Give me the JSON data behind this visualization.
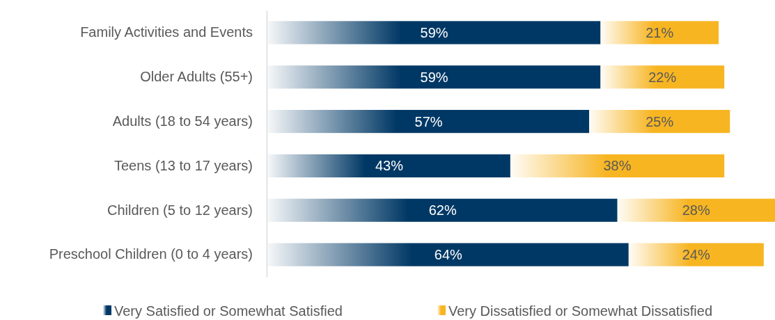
{
  "chart_data": {
    "type": "bar",
    "orientation": "horizontal",
    "stacked": true,
    "legend": "bottom",
    "categories": [
      "Family Activities and Events",
      "Older Adults (55+)",
      "Adults (18 to 54 years)",
      "Teens (13 to 17 years)",
      "Children (5 to 12 years)",
      "Preschool Children (0 to 4 years)"
    ],
    "series": [
      {
        "name": "Very Satisfied or Somewhat Satisfied",
        "color": "#003865",
        "values": [
          59,
          59,
          57,
          43,
          62,
          64
        ],
        "value_labels": [
          "59%",
          "59%",
          "57%",
          "43%",
          "62%",
          "64%"
        ]
      },
      {
        "name": "Very Dissatisfied or Somewhat Dissatisfied",
        "color": "#f7b522",
        "values": [
          21,
          22,
          25,
          38,
          28,
          24
        ],
        "value_labels": [
          "21%",
          "22%",
          "25%",
          "38%",
          "28%",
          "24%"
        ]
      }
    ]
  }
}
